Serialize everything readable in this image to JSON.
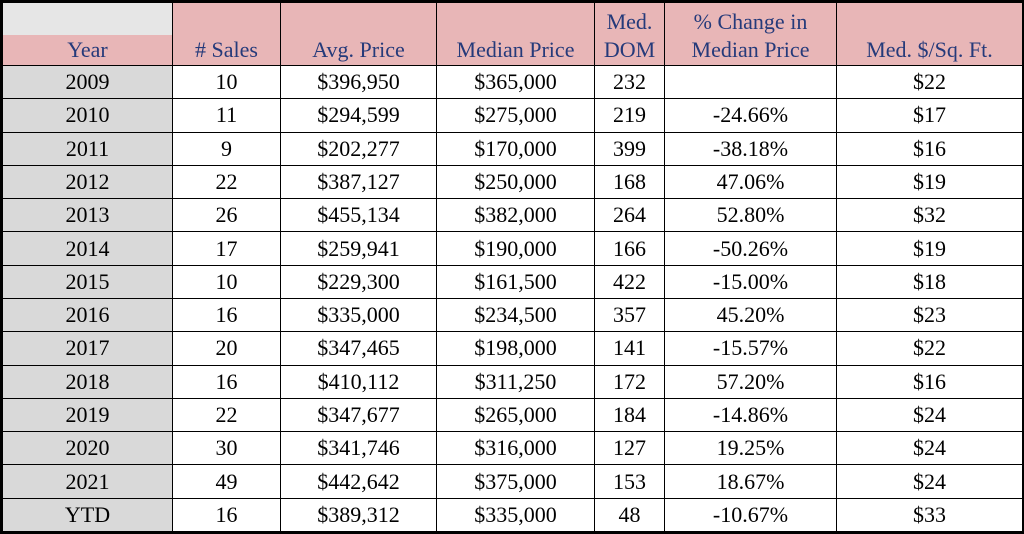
{
  "headers_top": [
    "",
    "",
    "",
    "",
    "Med.",
    "% Change in",
    ""
  ],
  "headers_bottom": [
    "Year",
    "# Sales",
    "Avg. Price",
    "Median Price",
    "DOM",
    "Median Price",
    "Med. $/Sq. Ft."
  ],
  "rows": [
    [
      "2009",
      "10",
      "$396,950",
      "$365,000",
      "232",
      "",
      "$22"
    ],
    [
      "2010",
      "11",
      "$294,599",
      "$275,000",
      "219",
      "-24.66%",
      "$17"
    ],
    [
      "2011",
      "9",
      "$202,277",
      "$170,000",
      "399",
      "-38.18%",
      "$16"
    ],
    [
      "2012",
      "22",
      "$387,127",
      "$250,000",
      "168",
      "47.06%",
      "$19"
    ],
    [
      "2013",
      "26",
      "$455,134",
      "$382,000",
      "264",
      "52.80%",
      "$32"
    ],
    [
      "2014",
      "17",
      "$259,941",
      "$190,000",
      "166",
      "-50.26%",
      "$19"
    ],
    [
      "2015",
      "10",
      "$229,300",
      "$161,500",
      "422",
      "-15.00%",
      "$18"
    ],
    [
      "2016",
      "16",
      "$335,000",
      "$234,500",
      "357",
      "45.20%",
      "$23"
    ],
    [
      "2017",
      "20",
      "$347,465",
      "$198,000",
      "141",
      "-15.57%",
      "$22"
    ],
    [
      "2018",
      "16",
      "$410,112",
      "$311,250",
      "172",
      "57.20%",
      "$16"
    ],
    [
      "2019",
      "22",
      "$347,677",
      "$265,000",
      "184",
      "-14.86%",
      "$24"
    ],
    [
      "2020",
      "30",
      "$341,746",
      "$316,000",
      "127",
      "19.25%",
      "$24"
    ],
    [
      "2021",
      "49",
      "$442,642",
      "$375,000",
      "153",
      "18.67%",
      "$24"
    ],
    [
      "YTD",
      "16",
      "$389,312",
      "$335,000",
      "48",
      "-10.67%",
      "$33"
    ]
  ],
  "colors": {
    "header_bg": "#e8b6b7",
    "header_text": "#253a7a",
    "year_cell_bg": "#d9d9d9",
    "top_left_bg": "#e6e6e6"
  }
}
